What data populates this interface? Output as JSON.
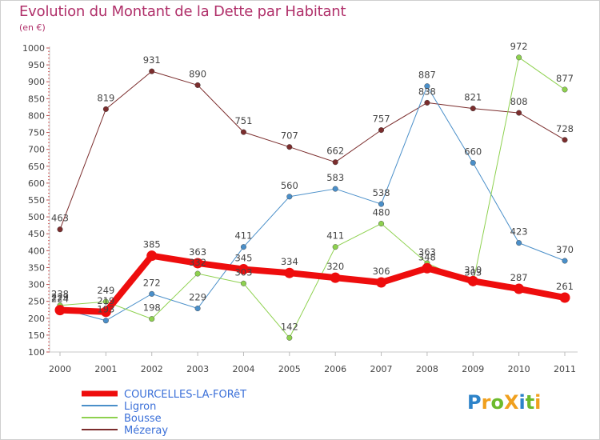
{
  "title": "Evolution du Montant de la Dette par Habitant",
  "subtitle": "(en €)",
  "logo": {
    "text": "ProXiti",
    "letters": [
      "P",
      "r",
      "o",
      "X",
      "i",
      "t",
      "i"
    ],
    "colors": [
      "#2d83c9",
      "#f0a01e",
      "#6cba2c",
      "#f0a01e",
      "#2d83c9",
      "#6cba2c",
      "#f0a01e"
    ]
  },
  "chart_data": {
    "type": "line",
    "x": [
      "2000",
      "2001",
      "2002",
      "2003",
      "2004",
      "2005",
      "2006",
      "2007",
      "2008",
      "2009",
      "2010",
      "2011"
    ],
    "ylim": [
      100,
      1000
    ],
    "yticks": [
      100,
      150,
      200,
      250,
      300,
      350,
      400,
      450,
      500,
      550,
      600,
      650,
      700,
      750,
      800,
      850,
      900,
      950,
      1000
    ],
    "grid": false,
    "legend_position": "bottom-left",
    "series": [
      {
        "name": "Mézeray",
        "color": "#7b2d2d",
        "width": 1,
        "values": [
          463,
          819,
          931,
          890,
          751,
          707,
          662,
          757,
          838,
          821,
          808,
          728
        ],
        "labels": [
          "463",
          "819",
          "931",
          "890",
          "751",
          "707",
          "662",
          "757",
          "838",
          "821",
          "808",
          "728"
        ]
      },
      {
        "name": "Ligron",
        "color": "#4a8fc9",
        "width": 1,
        "values": [
          229,
          193,
          272,
          229,
          411,
          560,
          583,
          538,
          887,
          660,
          423,
          370
        ],
        "labels": [
          "229",
          "193",
          "272",
          "229",
          "411",
          "560",
          "583",
          "538",
          "887",
          "660",
          "423",
          "370"
        ]
      },
      {
        "name": "Bousse",
        "color": "#8ed14f",
        "width": 1,
        "values": [
          238,
          249,
          198,
          332,
          303,
          142,
          411,
          480,
          363,
          303,
          972,
          877
        ],
        "labels": [
          "238",
          "249",
          "198",
          "332",
          "303",
          "142",
          "411",
          "480",
          "363",
          "303",
          "972",
          "877"
        ]
      },
      {
        "name": "COURCELLES-LA-FORêT",
        "color": "#ee0d0d",
        "width": 8,
        "values": [
          224,
          219,
          385,
          363,
          345,
          334,
          320,
          306,
          348,
          310,
          287,
          261
        ],
        "labels": [
          "224",
          "219",
          "385",
          "363",
          "345",
          "334",
          "320",
          "306",
          "348",
          "310",
          "287",
          "261"
        ]
      }
    ],
    "legend": [
      "COURCELLES-LA-FORêT",
      "Ligron",
      "Bousse",
      "Mézeray"
    ]
  }
}
